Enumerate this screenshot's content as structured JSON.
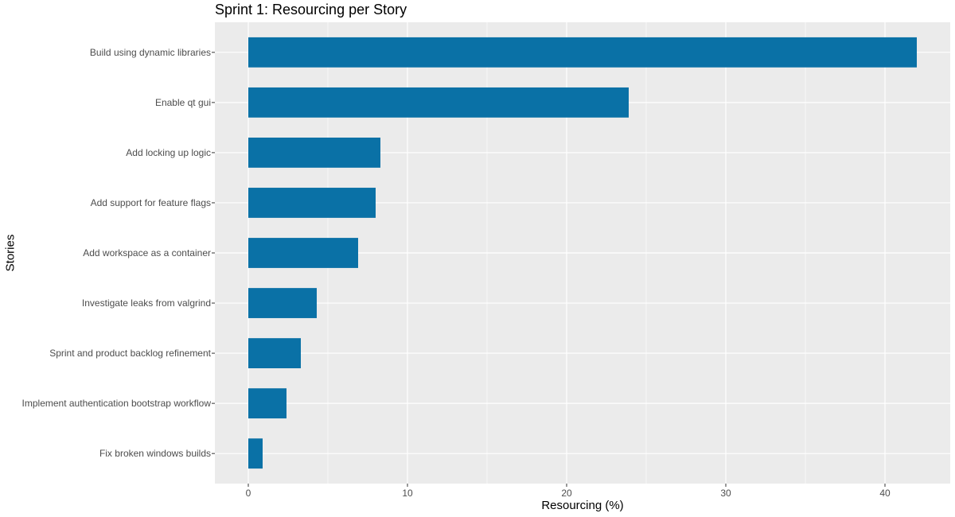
{
  "chart_data": {
    "type": "bar",
    "orientation": "horizontal",
    "title": "Sprint 1: Resourcing per Story",
    "xlabel": "Resourcing (%)",
    "ylabel": "Stories",
    "categories": [
      "Build using dynamic libraries",
      "Enable qt gui",
      "Add locking up logic",
      "Add support for feature flags",
      "Add workspace as a container",
      "Investigate leaks from valgrind",
      "Sprint and product backlog refinement",
      "Implement authentication bootstrap workflow",
      "Fix broken windows builds"
    ],
    "values": [
      42.0,
      23.9,
      8.3,
      8.0,
      6.9,
      4.3,
      3.3,
      2.4,
      0.9
    ],
    "xlim": [
      -2.1,
      44.1
    ],
    "xticks": [
      0,
      10,
      20,
      30,
      40
    ],
    "grid": true,
    "colors": {
      "bar": "#0a71a6",
      "panel": "#ebebeb",
      "grid": "#ffffff",
      "tick_text": "#4d4d4d"
    }
  }
}
